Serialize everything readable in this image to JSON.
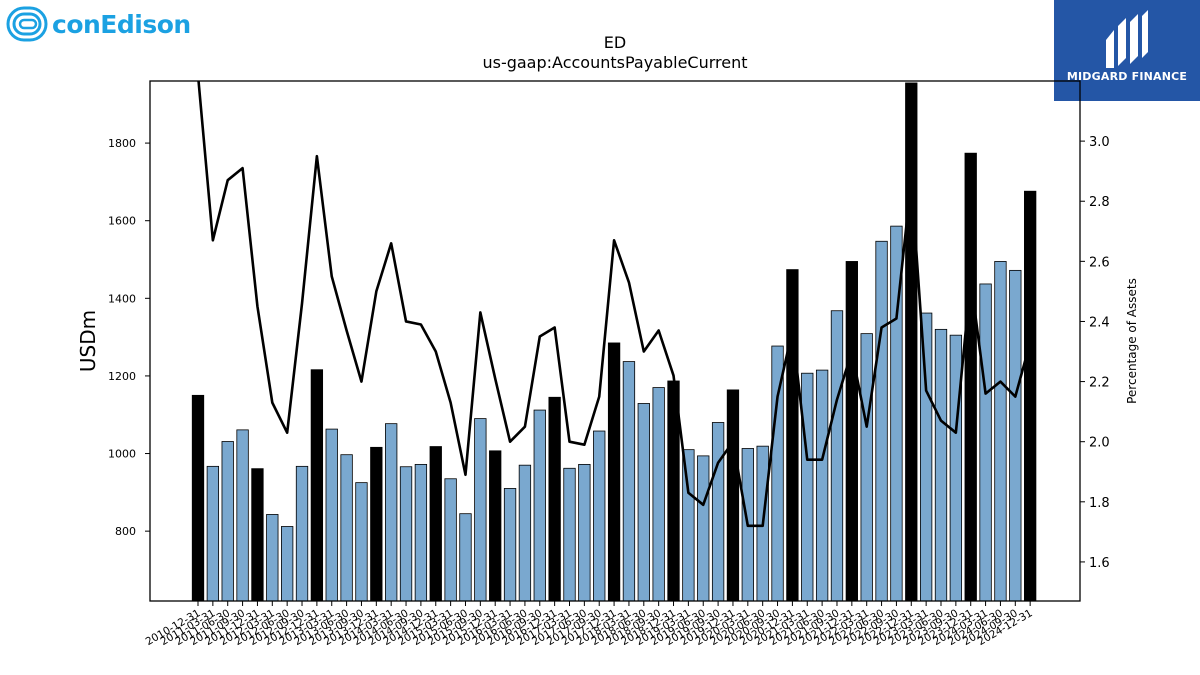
{
  "logos": {
    "left_brand": "conEdison",
    "right_brand": "MIDGARD FINANCE",
    "left_color": "#1ba1e2",
    "right_bg_color": "#2456a6"
  },
  "chart_data": {
    "type": "bar",
    "title": "ED",
    "subtitle": "us-gaap:AccountsPayableCurrent",
    "ylabel": "USDm",
    "y2label": "Percentage of Assets",
    "ylim": [
      620,
      1960
    ],
    "y2lim": [
      1.47,
      3.2
    ],
    "yticks": [
      800,
      1000,
      1200,
      1400,
      1600,
      1800
    ],
    "y2ticks": [
      "1.6",
      "1.8",
      "2.0",
      "2.2",
      "2.4",
      "2.6",
      "2.8",
      "3.0"
    ],
    "bar_colors": {
      "annual": "#000000",
      "quarterly": "#7aa8cf"
    },
    "line_color": "#000000",
    "categories": [
      "2010-12-31",
      "2011-03-31",
      "2011-06-30",
      "2011-09-30",
      "2011-12-31",
      "2012-03-31",
      "2012-06-30",
      "2012-09-30",
      "2012-12-31",
      "2013-03-31",
      "2013-06-30",
      "2013-09-30",
      "2013-12-31",
      "2014-03-31",
      "2014-06-30",
      "2014-09-30",
      "2014-12-31",
      "2015-03-31",
      "2015-06-30",
      "2015-09-30",
      "2015-12-31",
      "2016-03-31",
      "2016-06-30",
      "2016-09-30",
      "2016-12-31",
      "2017-03-31",
      "2017-06-30",
      "2017-09-30",
      "2017-12-31",
      "2018-03-31",
      "2018-06-30",
      "2018-09-30",
      "2018-12-31",
      "2019-03-31",
      "2019-06-30",
      "2019-09-30",
      "2019-12-31",
      "2020-03-31",
      "2020-06-30",
      "2020-09-30",
      "2020-12-31",
      "2021-03-31",
      "2021-06-30",
      "2021-09-30",
      "2021-12-31",
      "2022-03-31",
      "2022-06-30",
      "2022-09-30",
      "2022-12-31",
      "2023-03-31",
      "2023-06-30",
      "2023-09-30",
      "2023-12-31",
      "2024-03-31",
      "2024-06-30",
      "2024-09-30",
      "2024-12-31"
    ],
    "series": [
      {
        "type": "bar",
        "values": [
          1150,
          967,
          1031,
          1061,
          961,
          843,
          812,
          967,
          1216,
          1063,
          997,
          925,
          1016,
          1077,
          966,
          972,
          1018,
          935,
          845,
          1090,
          1007,
          910,
          970,
          1112,
          1145,
          962,
          972,
          1058,
          1285,
          1237,
          1129,
          1170,
          1187,
          1010,
          994,
          1080,
          1164,
          1013,
          1019,
          1277,
          1474,
          1207,
          1215,
          1368,
          1495,
          1309,
          1547,
          1586,
          1955,
          1362,
          1320,
          1305,
          1774,
          1437,
          1495,
          1472,
          1676
        ],
        "annual": [
          true,
          false,
          false,
          false,
          true,
          false,
          false,
          false,
          true,
          false,
          false,
          false,
          true,
          false,
          false,
          false,
          true,
          false,
          false,
          false,
          true,
          false,
          false,
          false,
          true,
          false,
          false,
          false,
          true,
          false,
          false,
          false,
          true,
          false,
          false,
          false,
          true,
          false,
          false,
          false,
          true,
          false,
          false,
          false,
          true,
          false,
          false,
          false,
          true,
          false,
          false,
          false,
          true,
          false,
          false,
          false,
          true
        ]
      },
      {
        "type": "line",
        "name": "Percentage of Assets",
        "values": [
          3.22,
          2.67,
          2.87,
          2.91,
          2.45,
          2.13,
          2.03,
          2.46,
          2.95,
          2.55,
          2.37,
          2.2,
          2.5,
          2.66,
          2.4,
          2.39,
          2.3,
          2.13,
          1.89,
          2.43,
          2.21,
          2.0,
          2.05,
          2.35,
          2.38,
          2.0,
          1.99,
          2.15,
          2.67,
          2.53,
          2.3,
          2.37,
          2.22,
          1.83,
          1.79,
          1.93,
          2.0,
          1.72,
          1.72,
          2.15,
          2.37,
          1.94,
          1.94,
          2.14,
          2.3,
          2.05,
          2.38,
          2.41,
          2.87,
          2.17,
          2.07,
          2.03,
          2.54,
          2.16,
          2.2,
          2.15,
          2.33
        ]
      }
    ]
  }
}
